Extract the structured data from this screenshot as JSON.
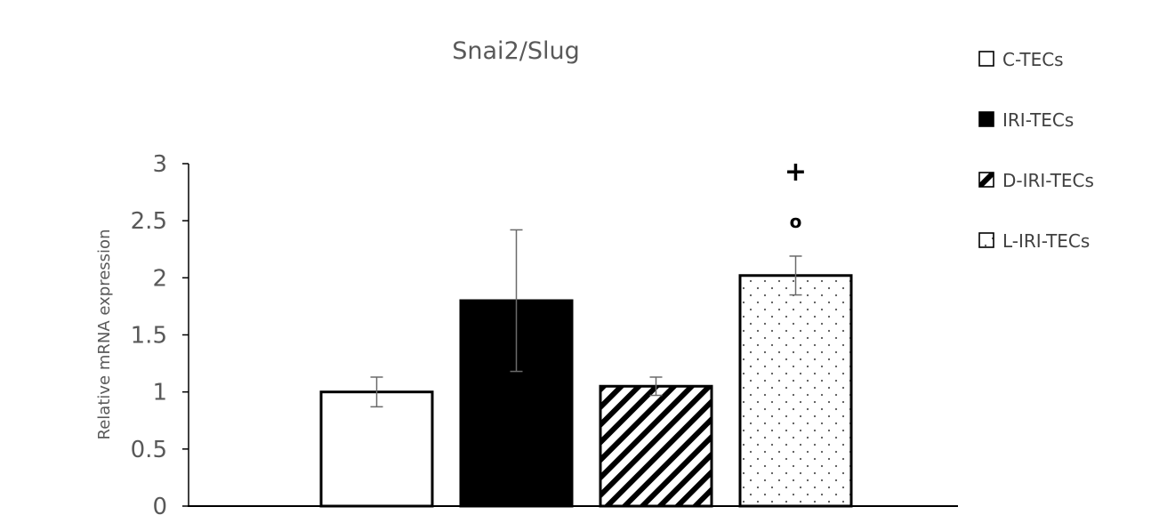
{
  "chart_data": {
    "type": "bar",
    "title": "Snai2/Slug",
    "xlabel": "",
    "ylabel": "Relative mRNA expression",
    "ylim": [
      0,
      3
    ],
    "yticks": [
      "0",
      "0.5",
      "1",
      "1.5",
      "2",
      "2.5",
      "3"
    ],
    "grid": false,
    "legend_position": "right",
    "categories": [
      "C-TECs",
      "IRI-TECs",
      "D-IRI-TECs",
      "L-IRI-TECs"
    ],
    "values": [
      1.0,
      1.8,
      1.05,
      2.02
    ],
    "errors": [
      0.13,
      0.62,
      0.08,
      0.17
    ],
    "fills": [
      "white",
      "black",
      "diagonal-stripes",
      "dots"
    ],
    "annotations": [
      {
        "category": "L-IRI-TECs",
        "symbols": [
          "+",
          "o"
        ]
      }
    ]
  }
}
